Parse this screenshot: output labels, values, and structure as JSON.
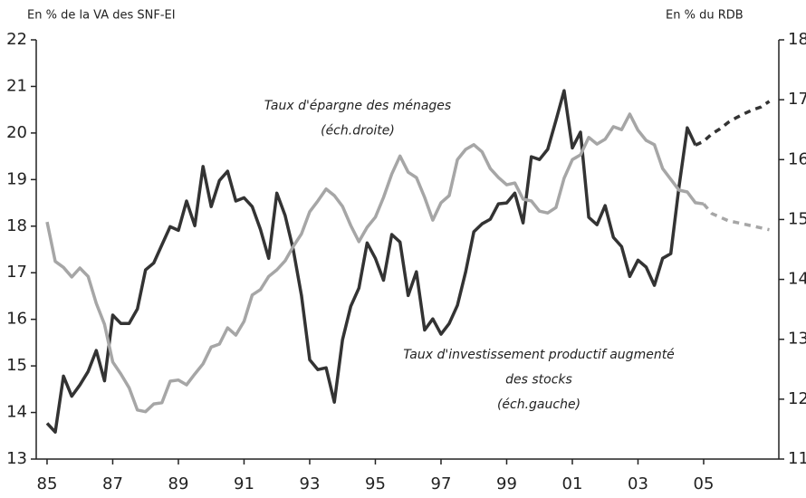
{
  "chart_data": {
    "type": "line",
    "ylabel": "En % de la VA des SNF-EI",
    "y2label": "En % du RDB",
    "annotations": [
      [
        "Taux d'épargne des ménages",
        "(éch.droite)"
      ],
      [
        "Taux d'investissement productif augmenté",
        "des stocks",
        "(éch.gauche)"
      ]
    ],
    "xlim": [
      1984.67,
      2007.29
    ],
    "xticks": [
      {
        "value": 1985,
        "label": "85"
      },
      {
        "value": 1987,
        "label": "87"
      },
      {
        "value": 1989,
        "label": "89"
      },
      {
        "value": 1991,
        "label": "91"
      },
      {
        "value": 1993,
        "label": "93"
      },
      {
        "value": 1995,
        "label": "95"
      },
      {
        "value": 1997,
        "label": "97"
      },
      {
        "value": 1999,
        "label": "99"
      },
      {
        "value": 2001,
        "label": "01"
      },
      {
        "value": 2003,
        "label": "03"
      },
      {
        "value": 2005,
        "label": "05"
      }
    ],
    "ylim": [
      13,
      22
    ],
    "yticks": [
      13,
      14,
      15,
      16,
      17,
      18,
      19,
      20,
      21,
      22
    ],
    "y2lim": [
      11,
      18
    ],
    "y2ticks": [
      11,
      12,
      13,
      14,
      15,
      16,
      17,
      18
    ],
    "x": [
      1985,
      1985.25,
      1985.5,
      1985.75,
      1986,
      1986.25,
      1986.5,
      1986.75,
      1987,
      1987.25,
      1987.5,
      1987.75,
      1988,
      1988.25,
      1988.5,
      1988.75,
      1989,
      1989.25,
      1989.5,
      1989.75,
      1990,
      1990.25,
      1990.5,
      1990.75,
      1991,
      1991.25,
      1991.5,
      1991.75,
      1992,
      1992.25,
      1992.5,
      1992.75,
      1993,
      1993.25,
      1993.5,
      1993.75,
      1994,
      1994.25,
      1994.5,
      1994.75,
      1995,
      1995.25,
      1995.5,
      1995.75,
      1996,
      1996.25,
      1996.5,
      1996.75,
      1997,
      1997.25,
      1997.5,
      1997.75,
      1998,
      1998.25,
      1998.5,
      1998.75,
      1999,
      1999.25,
      1999.5,
      1999.75,
      2000,
      2000.25,
      2000.5,
      2000.75,
      2001,
      2001.25,
      2001.5,
      2001.75,
      2002,
      2002.25,
      2002.5,
      2002.75,
      2003,
      2003.25,
      2003.5,
      2003.75,
      2004,
      2004.25,
      2004.5,
      2004.75,
      2005,
      2005.25,
      2005.5,
      2005.75,
      2006,
      2006.25,
      2006.5,
      2006.75,
      2007
    ],
    "series": [
      {
        "color": "#333333",
        "dashed_from": 79,
        "values": [
          13.77,
          13.58,
          14.78,
          14.35,
          14.59,
          14.88,
          15.33,
          14.68,
          16.09,
          15.91,
          15.91,
          16.22,
          17.06,
          17.21,
          17.6,
          17.99,
          17.91,
          18.54,
          18.01,
          19.28,
          18.42,
          18.98,
          19.18,
          18.54,
          18.61,
          18.42,
          17.93,
          17.31,
          18.71,
          18.23,
          17.5,
          16.51,
          15.13,
          14.92,
          14.96,
          14.22,
          15.56,
          16.28,
          16.67,
          17.64,
          17.31,
          16.84,
          17.82,
          17.66,
          16.51,
          17.02,
          15.77,
          16.01,
          15.68,
          15.91,
          16.3,
          17.02,
          17.88,
          18.05,
          18.15,
          18.48,
          18.5,
          18.71,
          18.07,
          19.49,
          19.43,
          19.65,
          20.27,
          20.91,
          19.68,
          20.02,
          18.19,
          18.03,
          18.44,
          17.76,
          17.56,
          16.92,
          17.27,
          17.12,
          16.73,
          17.31,
          17.41,
          18.85,
          20.11,
          19.74,
          19.82,
          19.98,
          20.09,
          20.23,
          20.33,
          20.42,
          20.5,
          20.56,
          20.68
        ]
      },
      {
        "color": "#a6a6a6",
        "axis": "y2",
        "dashed_from": 80,
        "values": [
          14.96,
          14.3,
          14.2,
          14.04,
          14.19,
          14.05,
          13.6,
          13.25,
          12.62,
          12.42,
          12.19,
          11.82,
          11.79,
          11.92,
          11.94,
          12.3,
          12.32,
          12.24,
          12.42,
          12.59,
          12.87,
          12.92,
          13.19,
          13.07,
          13.3,
          13.74,
          13.83,
          14.05,
          14.16,
          14.31,
          14.55,
          14.76,
          15.13,
          15.31,
          15.51,
          15.4,
          15.22,
          14.9,
          14.63,
          14.87,
          15.04,
          15.37,
          15.76,
          16.06,
          15.79,
          15.7,
          15.37,
          14.99,
          15.28,
          15.4,
          16.0,
          16.17,
          16.25,
          16.13,
          15.85,
          15.7,
          15.58,
          15.61,
          15.34,
          15.31,
          15.14,
          15.11,
          15.2,
          15.69,
          16.0,
          16.08,
          16.37,
          16.26,
          16.34,
          16.55,
          16.5,
          16.76,
          16.49,
          16.32,
          16.25,
          15.85,
          15.67,
          15.49,
          15.46,
          15.28,
          15.26,
          15.1,
          15.04,
          14.98,
          14.95,
          14.92,
          14.89,
          14.86,
          14.83
        ]
      }
    ]
  }
}
